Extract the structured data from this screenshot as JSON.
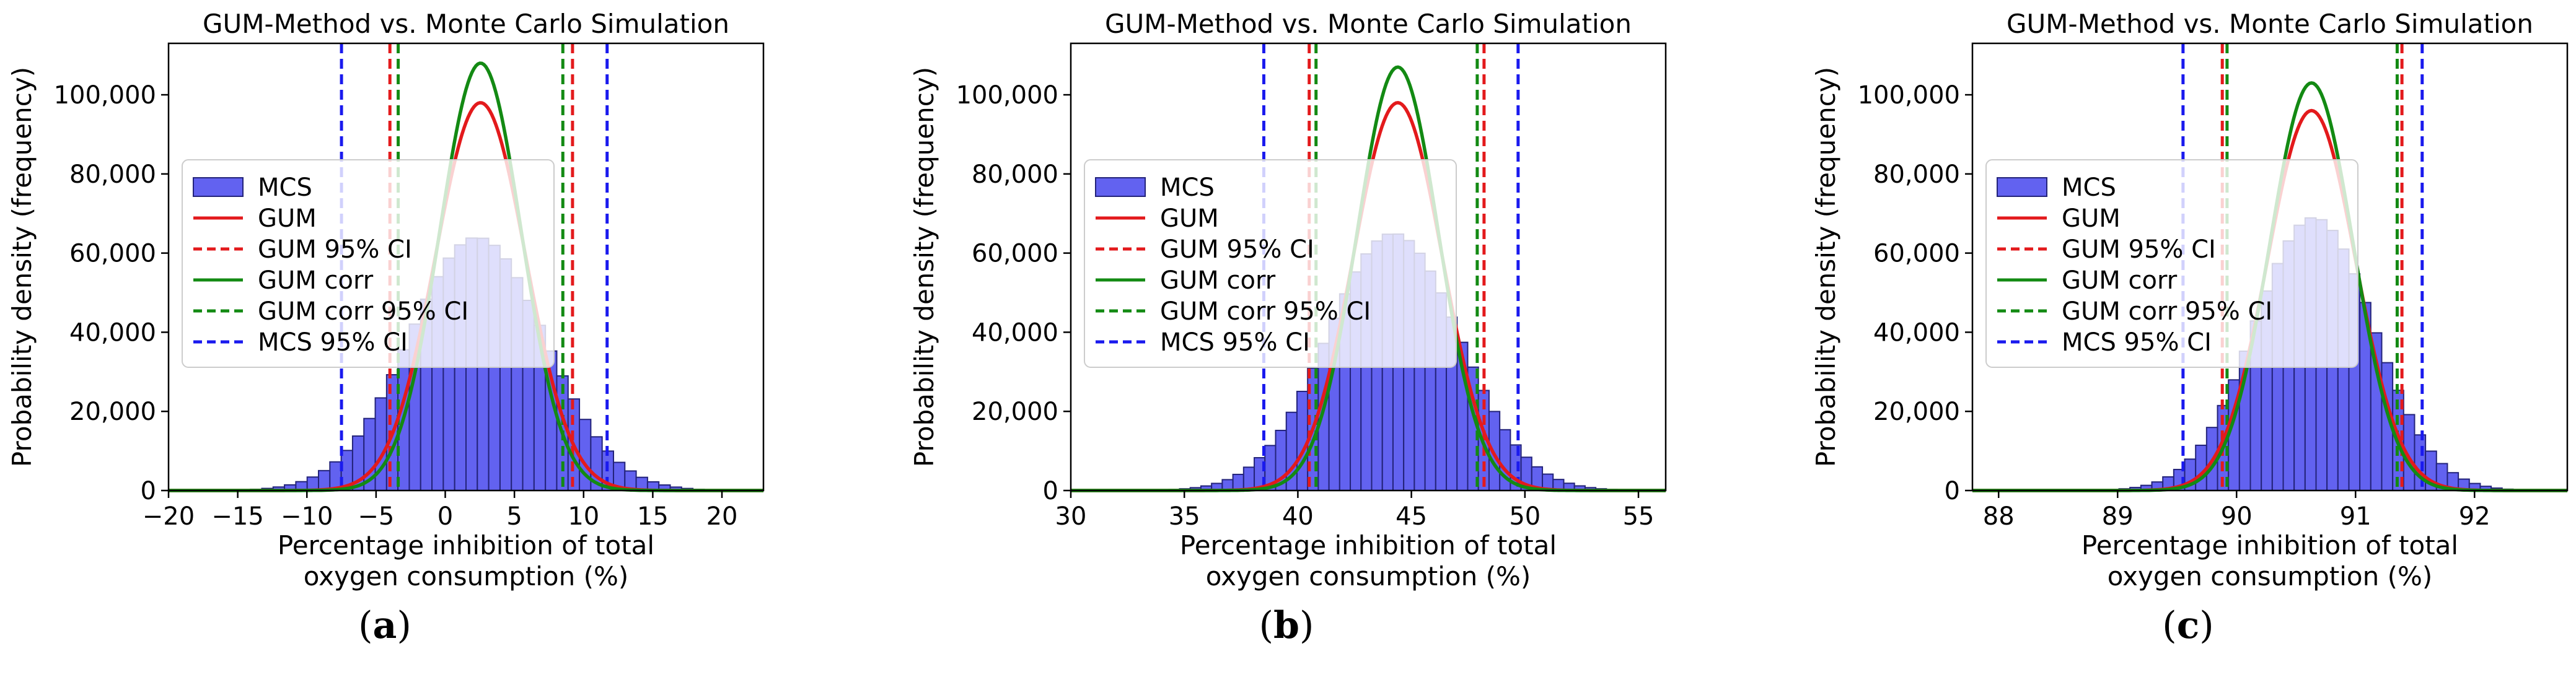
{
  "panels": [
    {
      "label_open": "(",
      "label_letter": "a",
      "label_close": ")"
    },
    {
      "label_open": "(",
      "label_letter": "b",
      "label_close": ")"
    },
    {
      "label_open": "(",
      "label_letter": "c",
      "label_close": ")"
    }
  ],
  "chart_data": [
    {
      "type": "bar",
      "title": "GUM-Method vs. Monte Carlo Simulation",
      "xlabel_line1": "Percentage inhibition of total",
      "xlabel_line2": "oxygen consumption (%)",
      "ylabel": "Probability density (frequency)",
      "xlim": [
        -20,
        23
      ],
      "ylim": [
        0,
        113000
      ],
      "xticks": [
        -20,
        -15,
        -10,
        -5,
        0,
        5,
        10,
        15,
        20
      ],
      "xtick_labels": [
        "−20",
        "−15",
        "−10",
        "−5",
        "0",
        "5",
        "10",
        "15",
        "20"
      ],
      "yticks": [
        0,
        20000,
        40000,
        60000,
        80000,
        100000
      ],
      "ytick_labels": [
        "0",
        "20,000",
        "40,000",
        "60,000",
        "80,000",
        "100,000"
      ],
      "histogram": {
        "range": [
          -19.0,
          22.0
        ],
        "bins": 50,
        "mean": 2.3,
        "sd": 4.9,
        "peak": 64000
      },
      "gum": {
        "mean": 2.55,
        "sd": 3.25,
        "peak": 98000,
        "ci": [
          -4.0,
          9.2
        ]
      },
      "gum_corr": {
        "mean": 2.55,
        "sd": 2.95,
        "peak": 108000,
        "ci": [
          -3.4,
          8.5
        ]
      },
      "mcs_ci": [
        -7.5,
        11.7
      ],
      "legend": [
        "MCS",
        "GUM",
        "GUM 95% CI",
        "GUM corr",
        "GUM corr 95% CI",
        "MCS 95% CI"
      ]
    },
    {
      "type": "bar",
      "title": "GUM-Method vs. Monte Carlo Simulation",
      "xlabel_line1": "Percentage inhibition of total",
      "xlabel_line2": "oxygen consumption (%)",
      "ylabel": "Probability density (frequency)",
      "xlim": [
        30.0,
        56.2
      ],
      "ylim": [
        0,
        113000
      ],
      "xticks": [
        30,
        35,
        40,
        45,
        50,
        55
      ],
      "xtick_labels": [
        "30",
        "35",
        "40",
        "45",
        "50",
        "55"
      ],
      "yticks": [
        0,
        20000,
        40000,
        60000,
        80000,
        100000
      ],
      "ytick_labels": [
        "0",
        "20,000",
        "40,000",
        "60,000",
        "80,000",
        "100,000"
      ],
      "histogram": {
        "range": [
          31.5,
          55.0
        ],
        "bins": 50,
        "mean": 44.2,
        "sd": 2.9,
        "peak": 65000
      },
      "gum": {
        "mean": 44.4,
        "sd": 1.95,
        "peak": 98000,
        "ci": [
          40.5,
          48.2
        ]
      },
      "gum_corr": {
        "mean": 44.4,
        "sd": 1.8,
        "peak": 107000,
        "ci": [
          40.8,
          47.9
        ]
      },
      "mcs_ci": [
        38.5,
        49.7
      ],
      "legend": [
        "MCS",
        "GUM",
        "GUM 95% CI",
        "GUM corr",
        "GUM corr 95% CI",
        "MCS 95% CI"
      ]
    },
    {
      "type": "bar",
      "title": "GUM-Method vs. Monte Carlo Simulation",
      "xlabel_line1": "Percentage inhibition of total",
      "xlabel_line2": "oxygen consumption (%)",
      "ylabel": "Probability density (frequency)",
      "xlim": [
        87.78,
        92.78
      ],
      "ylim": [
        0,
        113000
      ],
      "xticks": [
        88,
        89,
        90,
        91,
        92
      ],
      "xtick_labels": [
        "88",
        "89",
        "90",
        "91",
        "92"
      ],
      "yticks": [
        0,
        20000,
        40000,
        60000,
        80000,
        100000
      ],
      "ytick_labels": [
        "0",
        "20,000",
        "40,000",
        "60,000",
        "80,000",
        "100,000"
      ],
      "histogram": {
        "range": [
          88.0,
          92.6
        ],
        "bins": 50,
        "mean": 90.65,
        "sd": 0.5,
        "peak": 69000
      },
      "gum": {
        "mean": 90.63,
        "sd": 0.37,
        "peak": 96000,
        "ci": [
          89.88,
          91.39
        ]
      },
      "gum_corr": {
        "mean": 90.63,
        "sd": 0.35,
        "peak": 103000,
        "ci": [
          89.92,
          91.35
        ]
      },
      "mcs_ci": [
        89.55,
        91.56
      ],
      "legend": [
        "MCS",
        "GUM",
        "GUM 95% CI",
        "GUM corr",
        "GUM corr 95% CI",
        "MCS 95% CI"
      ]
    }
  ],
  "colors": {
    "hist_fill": "#6262f0",
    "hist_edge": "#23237a",
    "gum": "#e31a1c",
    "gum_corr": "#138a13",
    "mcs_ci": "#1a1aee"
  }
}
